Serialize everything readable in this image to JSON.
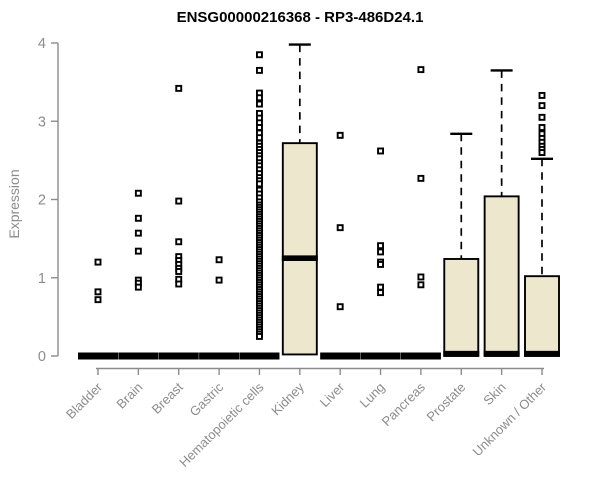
{
  "chart_data": {
    "type": "boxplot",
    "title": "ENSG00000216368 - RP3-486D24.1",
    "ylabel": "Expression",
    "xlabel": "",
    "ylim": [
      0,
      4
    ],
    "yticks": [
      0,
      1,
      2,
      3,
      4
    ],
    "grid": false,
    "legend": "none",
    "box_fill_color": "#EDE7CE",
    "box_stroke_color": "#000000",
    "axis_color": "#8c8c8c",
    "categories": [
      "Bladder",
      "Brain",
      "Breast",
      "Gastric",
      "Hematopoietic cells",
      "Kidney",
      "Liver",
      "Lung",
      "Pancreas",
      "Prostate",
      "Skin",
      "Unknown / Other"
    ],
    "series": [
      {
        "label": "Bladder",
        "q1": 0,
        "median": 0,
        "q3": 0,
        "whisker_low": 0,
        "whisker_high": 0,
        "outliers": [
          1.2,
          0.82,
          0.72
        ]
      },
      {
        "label": "Brain",
        "q1": 0,
        "median": 0,
        "q3": 0,
        "whisker_low": 0,
        "whisker_high": 0,
        "outliers": [
          2.08,
          1.76,
          1.57,
          1.34,
          0.97,
          0.93,
          0.88
        ]
      },
      {
        "label": "Breast",
        "q1": 0,
        "median": 0,
        "q3": 0,
        "whisker_low": 0,
        "whisker_high": 0,
        "outliers": [
          3.42,
          1.98,
          1.46,
          1.27,
          1.22,
          1.17,
          1.12,
          1.08,
          0.98,
          0.92
        ]
      },
      {
        "label": "Gastric",
        "q1": 0,
        "median": 0,
        "q3": 0,
        "whisker_low": 0,
        "whisker_high": 0,
        "outliers": [
          1.23,
          0.97
        ]
      },
      {
        "label": "Hematopoietic cells",
        "q1": 0,
        "median": 0,
        "q3": 0,
        "whisker_low": 0,
        "whisker_high": 0,
        "outliers": [
          3.85,
          3.65,
          3.36,
          3.3,
          3.22,
          3.1,
          3.04,
          2.98,
          2.92,
          2.85,
          2.79,
          2.72,
          2.68,
          2.64,
          2.6,
          2.56,
          2.52,
          2.47,
          2.43,
          2.38,
          2.33,
          2.28,
          2.24,
          2.2,
          2.12,
          2.07,
          2.02,
          1.97,
          1.93,
          1.9,
          1.87,
          1.84,
          1.81,
          1.78,
          1.75,
          1.72,
          1.69,
          1.66,
          1.63,
          1.6,
          1.57,
          1.54,
          1.51,
          1.48,
          1.45,
          1.42,
          1.39,
          1.36,
          1.33,
          1.3,
          1.27,
          1.24,
          1.21,
          1.18,
          1.15,
          1.12,
          1.09,
          1.06,
          1.03,
          1.0,
          0.97,
          0.94,
          0.91,
          0.88,
          0.85,
          0.82,
          0.79,
          0.76,
          0.73,
          0.7,
          0.67,
          0.64,
          0.61,
          0.58,
          0.55,
          0.52,
          0.49,
          0.46,
          0.43,
          0.4,
          0.37,
          0.34,
          0.31,
          0.28,
          0.25
        ]
      },
      {
        "label": "Kidney",
        "q1": 0.02,
        "median": 1.25,
        "q3": 2.72,
        "whisker_low": 0.02,
        "whisker_high": 3.98,
        "outliers": []
      },
      {
        "label": "Liver",
        "q1": 0,
        "median": 0,
        "q3": 0,
        "whisker_low": 0,
        "whisker_high": 0,
        "outliers": [
          2.82,
          1.64,
          0.63
        ]
      },
      {
        "label": "Lung",
        "q1": 0,
        "median": 0,
        "q3": 0,
        "whisker_low": 0,
        "whisker_high": 0,
        "outliers": [
          2.62,
          1.41,
          1.33,
          1.2,
          1.17,
          0.88,
          0.81
        ]
      },
      {
        "label": "Pancreas",
        "q1": 0,
        "median": 0,
        "q3": 0,
        "whisker_low": 0,
        "whisker_high": 0,
        "outliers": [
          3.66,
          2.27,
          1.01,
          0.91
        ]
      },
      {
        "label": "Prostate",
        "q1": 0,
        "median": 0.03,
        "q3": 1.24,
        "whisker_low": 0,
        "whisker_high": 2.84,
        "outliers": []
      },
      {
        "label": "Skin",
        "q1": 0,
        "median": 0.03,
        "q3": 2.04,
        "whisker_low": 0,
        "whisker_high": 3.65,
        "outliers": []
      },
      {
        "label": "Unknown / Other",
        "q1": 0,
        "median": 0.03,
        "q3": 1.02,
        "whisker_low": 0,
        "whisker_high": 2.52,
        "outliers": [
          3.33,
          3.2,
          3.05,
          2.92,
          2.84,
          2.78,
          2.73,
          2.68,
          2.64,
          2.6
        ]
      }
    ]
  }
}
